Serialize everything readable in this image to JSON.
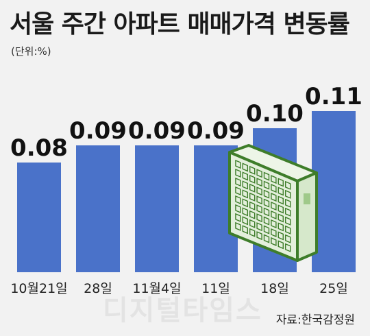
{
  "title": "서울 주간 아파트 매매가격 변동률",
  "unit": "(단위:%)",
  "source": "자료:한국감정원",
  "watermark": "디지털타임스",
  "colors": {
    "bar": "#4a72c9",
    "background": "#f2f2f2",
    "building_line": "#3e7d2a",
    "building_fill": "#e4f0dc"
  },
  "icons": [
    "apartment-building-icon"
  ],
  "chart_data": {
    "type": "bar",
    "title": "서울 주간 아파트 매매가격 변동률",
    "xlabel": "",
    "ylabel": "",
    "categories": [
      "10월21일",
      "28일",
      "11월4일",
      "11일",
      "18일",
      "25일"
    ],
    "values": [
      0.08,
      0.09,
      0.09,
      0.09,
      0.1,
      0.11
    ],
    "value_labels": [
      "0.08",
      "0.09",
      "0.09",
      "0.09",
      "0.10",
      "0.11"
    ],
    "grid": false,
    "legend": "none"
  }
}
